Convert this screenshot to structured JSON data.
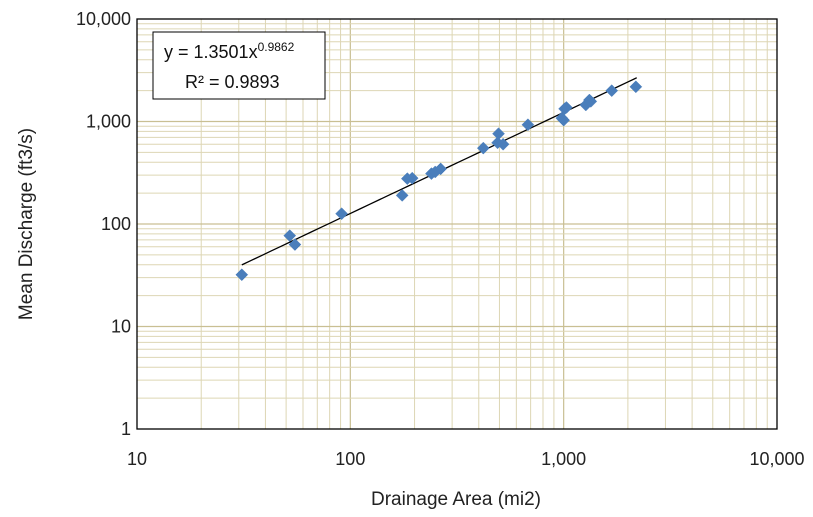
{
  "chart_data": {
    "type": "scatter",
    "xlabel": "Drainage Area (mi2)",
    "ylabel": "Mean Discharge (ft3/s)",
    "xscale": "log",
    "yscale": "log",
    "xlim": [
      10,
      10000
    ],
    "ylim": [
      1,
      10000
    ],
    "x_ticks": [
      10,
      100,
      1000,
      10000
    ],
    "x_tick_labels": [
      "10",
      "100",
      "1,000",
      "10,000"
    ],
    "y_ticks": [
      1,
      10,
      100,
      1000,
      10000
    ],
    "y_tick_labels": [
      "1",
      "10",
      "100",
      "1,000",
      "10,000"
    ],
    "grid": "major and minor",
    "legend": "none",
    "colors": {
      "marker": "#4a7ebb",
      "trendline": "#000000",
      "grid": "#ddd6b4",
      "grid_major": "#c9bf93",
      "axis": "#000000"
    },
    "series": [
      {
        "marker": "diamond",
        "points": [
          [
            31,
            32
          ],
          [
            52,
            77
          ],
          [
            55,
            63
          ],
          [
            91,
            126
          ],
          [
            175,
            190
          ],
          [
            185,
            277
          ],
          [
            195,
            280
          ],
          [
            240,
            310
          ],
          [
            250,
            322
          ],
          [
            265,
            345
          ],
          [
            420,
            550
          ],
          [
            490,
            620
          ],
          [
            495,
            760
          ],
          [
            520,
            600
          ],
          [
            680,
            930
          ],
          [
            980,
            1080
          ],
          [
            1000,
            1030
          ],
          [
            1010,
            1330
          ],
          [
            1030,
            1370
          ],
          [
            1270,
            1450
          ],
          [
            1320,
            1620
          ],
          [
            1340,
            1570
          ],
          [
            1680,
            2000
          ],
          [
            2180,
            2180
          ]
        ]
      }
    ],
    "trendline": {
      "type": "power",
      "coefficient": 1.3501,
      "exponent": 0.9862,
      "r_squared": 0.9893,
      "x_range": [
        31,
        2200
      ],
      "equation_label": {
        "lhs": "y = 1.3501x",
        "exponent_text": "0.9862",
        "r2_text": "R² = 0.9893"
      }
    }
  }
}
